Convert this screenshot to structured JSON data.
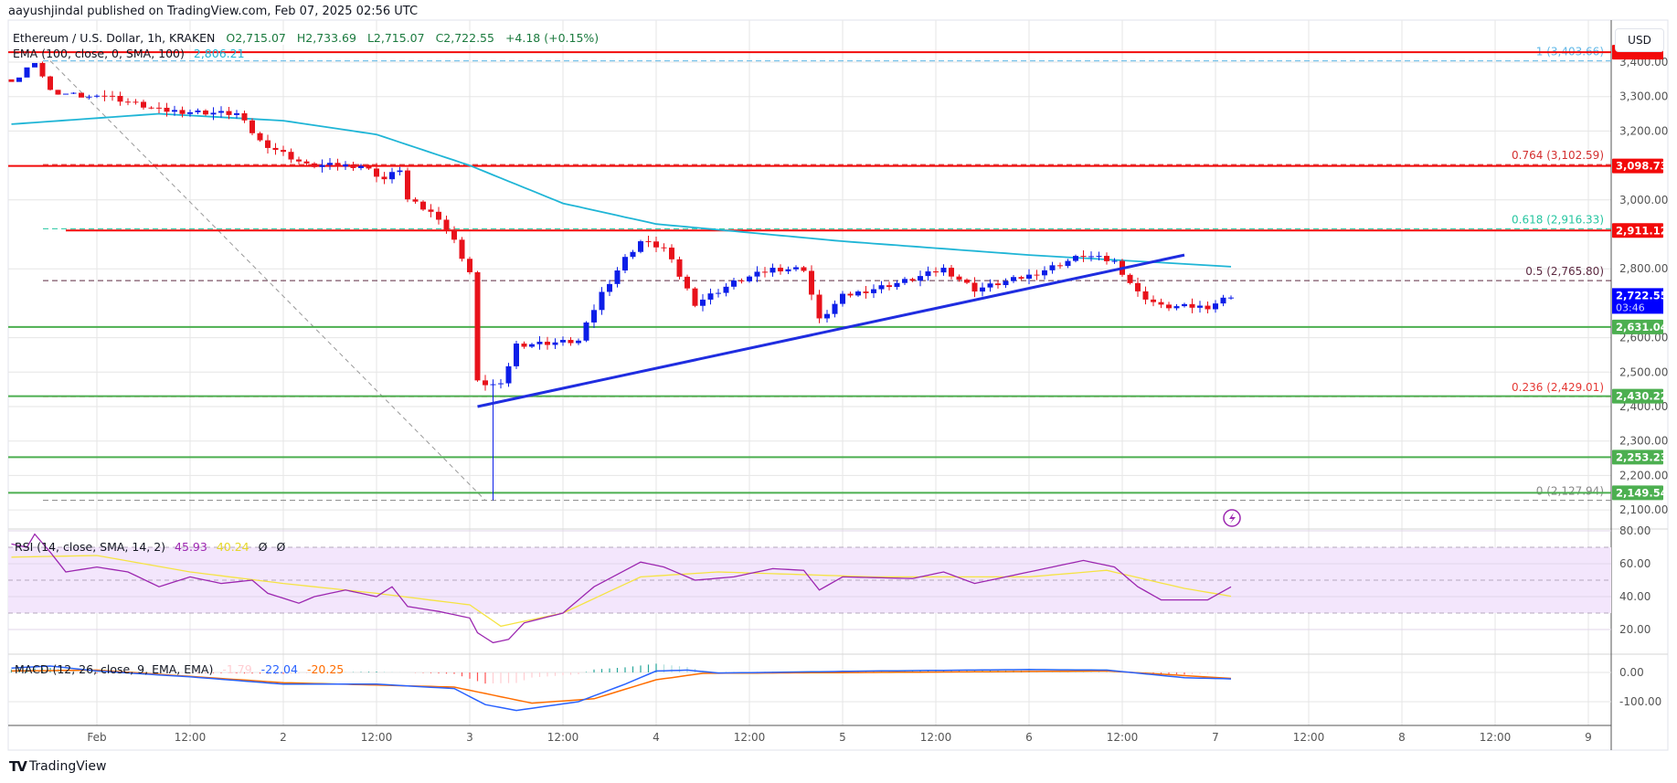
{
  "header": {
    "publisher": "aayushjindal published on TradingView.com, Feb 07, 2025 02:56 UTC",
    "symbol": "Ethereum / U.S. Dollar, 1h, KRAKEN",
    "open": "O2,715.07",
    "high": "H2,733.69",
    "low": "L2,715.07",
    "close": "C2,722.55",
    "change": "+4.18 (+0.15%)"
  },
  "ema_legend": {
    "label": "EMA (100, close, 0, SMA, 100)",
    "value": "2,806.21"
  },
  "rsi_legend": {
    "label": "RSI (14, close, SMA, 14, 2)",
    "rsi": "45.93",
    "sma": "40.24",
    "extra1": "Ø",
    "extra2": "Ø"
  },
  "macd_legend": {
    "label": "MACD (12, 26, close, 9, EMA, EMA)",
    "hist": "-1.79",
    "macd": "-22.04",
    "signal": "-20.25"
  },
  "currency": "USD",
  "brand": "TradingView",
  "colors": {
    "up": "#0c1ee8",
    "down": "#e8121b",
    "ema": "#1fb5d6",
    "trend": "#1f2de0",
    "red_level": "#f20a0a",
    "green_level": "#4caf50",
    "rsi": "#9c27b0",
    "rsi_sma": "#f5e342",
    "macd": "#2962ff",
    "signal": "#ff6d00",
    "price_label": "#0000ff"
  },
  "chart_data": {
    "type": "candlestick",
    "title": "Ethereum / U.S. Dollar, 1h, KRAKEN",
    "x_unit": "hours from Feb 1 00:00",
    "price_axis": {
      "ticks": [
        "3,400.00",
        "3,300.00",
        "3,200.00",
        "3,000.00",
        "2,800.00",
        "2,600.00",
        "2,500.00",
        "2,400.00",
        "2,300.00",
        "2,200.00",
        "2,100.00"
      ],
      "tick_values": [
        3400,
        3300,
        3200,
        3000,
        2800,
        2600,
        2500,
        2400,
        2300,
        2200,
        2100
      ]
    },
    "time_axis": [
      {
        "h": 0,
        "label": "Feb"
      },
      {
        "h": 12,
        "label": "12:00"
      },
      {
        "h": 24,
        "label": "2"
      },
      {
        "h": 36,
        "label": "12:00"
      },
      {
        "h": 48,
        "label": "3"
      },
      {
        "h": 60,
        "label": "12:00"
      },
      {
        "h": 72,
        "label": "4"
      },
      {
        "h": 84,
        "label": "12:00"
      },
      {
        "h": 96,
        "label": "5"
      },
      {
        "h": 108,
        "label": "12:00"
      },
      {
        "h": 120,
        "label": "6"
      },
      {
        "h": 132,
        "label": "12:00"
      },
      {
        "h": 144,
        "label": "7"
      },
      {
        "h": 156,
        "label": "12:00"
      },
      {
        "h": 168,
        "label": "8"
      },
      {
        "h": 180,
        "label": "12:00"
      },
      {
        "h": 192,
        "label": "9"
      }
    ],
    "close_waypoints": [
      [
        -11,
        3350
      ],
      [
        -8,
        3420
      ],
      [
        -6,
        3330
      ],
      [
        0,
        3310
      ],
      [
        8,
        3260
      ],
      [
        18,
        3250
      ],
      [
        21,
        3170
      ],
      [
        27,
        3100
      ],
      [
        34,
        3100
      ],
      [
        37,
        3060
      ],
      [
        39,
        3090
      ],
      [
        40,
        3000
      ],
      [
        44,
        2950
      ],
      [
        46,
        2880
      ],
      [
        48,
        2790
      ],
      [
        49,
        2470
      ],
      [
        52,
        2460
      ],
      [
        54,
        2580
      ],
      [
        62,
        2590
      ],
      [
        65,
        2730
      ],
      [
        68,
        2830
      ],
      [
        70,
        2880
      ],
      [
        73,
        2860
      ],
      [
        77,
        2700
      ],
      [
        82,
        2760
      ],
      [
        87,
        2800
      ],
      [
        91,
        2800
      ],
      [
        93,
        2650
      ],
      [
        96,
        2720
      ],
      [
        105,
        2770
      ],
      [
        109,
        2800
      ],
      [
        113,
        2740
      ],
      [
        120,
        2780
      ],
      [
        127,
        2840
      ],
      [
        131,
        2820
      ],
      [
        134,
        2730
      ],
      [
        137,
        2690
      ],
      [
        143,
        2690
      ],
      [
        146,
        2722.55
      ]
    ],
    "spike_low": {
      "h": 51,
      "price": 2127.94
    },
    "ema100_waypoints": [
      [
        -11,
        3220
      ],
      [
        8,
        3250
      ],
      [
        24,
        3230
      ],
      [
        36,
        3190
      ],
      [
        48,
        3100
      ],
      [
        60,
        2990
      ],
      [
        72,
        2930
      ],
      [
        96,
        2880
      ],
      [
        120,
        2840
      ],
      [
        146,
        2806.21
      ]
    ],
    "trendline": [
      [
        49,
        2400
      ],
      [
        140,
        2840
      ]
    ],
    "fib_diagonal": [
      [
        -6,
        3403.66
      ],
      [
        50,
        2127.94
      ]
    ],
    "horizontal_levels": [
      {
        "price": 3429,
        "color": "red",
        "label": ""
      },
      {
        "price": 3098.73,
        "color": "red",
        "label": "3,098.73"
      },
      {
        "price": 2911.12,
        "color": "red",
        "label": "2,911.12"
      },
      {
        "price": 2631.04,
        "color": "green",
        "label": "2,631.04"
      },
      {
        "price": 2430.22,
        "color": "green",
        "label": "2,430.22"
      },
      {
        "price": 2253.23,
        "color": "green",
        "label": "2,253.23"
      },
      {
        "price": 2149.54,
        "color": "green",
        "label": "2,149.54"
      }
    ],
    "fib_levels": [
      {
        "price": 3403.66,
        "label": "1 (3,403.66)",
        "color": "#5fb8e8"
      },
      {
        "price": 3102.59,
        "label": "0.764 (3,102.59)",
        "color": "#d32f2f"
      },
      {
        "price": 2916.33,
        "label": "0.618 (2,916.33)",
        "color": "#26c6a0"
      },
      {
        "price": 2765.8,
        "label": "0.5 (2,765.80)",
        "color": "#5d2a42"
      },
      {
        "price": 2429.01,
        "label": "0.236 (2,429.01)",
        "color": "#e53935"
      },
      {
        "price": 2127.94,
        "label": "0 (2,127.94)",
        "color": "#888888"
      }
    ],
    "current_price": {
      "price": 2722.55,
      "label": "2,722.55",
      "countdown": "03:46"
    },
    "rsi_axis": {
      "ticks": [
        "80.00",
        "60.00",
        "40.00",
        "20.00"
      ],
      "values": [
        80,
        60,
        40,
        20
      ],
      "band": [
        30,
        70
      ]
    },
    "rsi_waypoints": [
      [
        -11,
        72
      ],
      [
        -9,
        70
      ],
      [
        -8,
        78
      ],
      [
        -6,
        67
      ],
      [
        -4,
        55
      ],
      [
        0,
        58
      ],
      [
        4,
        55
      ],
      [
        8,
        46
      ],
      [
        12,
        52
      ],
      [
        16,
        48
      ],
      [
        20,
        50
      ],
      [
        22,
        42
      ],
      [
        26,
        36
      ],
      [
        28,
        40
      ],
      [
        32,
        44
      ],
      [
        36,
        40
      ],
      [
        38,
        46
      ],
      [
        40,
        34
      ],
      [
        44,
        31
      ],
      [
        48,
        27
      ],
      [
        49,
        18
      ],
      [
        51,
        12
      ],
      [
        53,
        14
      ],
      [
        55,
        24
      ],
      [
        60,
        30
      ],
      [
        64,
        46
      ],
      [
        68,
        56
      ],
      [
        70,
        61
      ],
      [
        73,
        58
      ],
      [
        77,
        50
      ],
      [
        82,
        52
      ],
      [
        87,
        57
      ],
      [
        91,
        56
      ],
      [
        93,
        44
      ],
      [
        96,
        52
      ],
      [
        105,
        51
      ],
      [
        109,
        55
      ],
      [
        113,
        48
      ],
      [
        120,
        55
      ],
      [
        127,
        62
      ],
      [
        131,
        58
      ],
      [
        134,
        46
      ],
      [
        137,
        38
      ],
      [
        143,
        38
      ],
      [
        146,
        45.93
      ]
    ],
    "rsi_sma_waypoints": [
      [
        -11,
        64
      ],
      [
        0,
        65
      ],
      [
        12,
        55
      ],
      [
        24,
        48
      ],
      [
        36,
        42
      ],
      [
        48,
        35
      ],
      [
        52,
        22
      ],
      [
        60,
        30
      ],
      [
        70,
        52
      ],
      [
        80,
        55
      ],
      [
        100,
        52
      ],
      [
        120,
        52
      ],
      [
        130,
        56
      ],
      [
        140,
        45
      ],
      [
        146,
        40.24
      ]
    ],
    "macd_axis": {
      "ticks": [
        "0.00",
        "-100.00"
      ],
      "values": [
        0,
        -100
      ]
    },
    "macd_waypoints": [
      [
        -11,
        15
      ],
      [
        -6,
        22
      ],
      [
        0,
        5
      ],
      [
        12,
        -15
      ],
      [
        24,
        -40
      ],
      [
        36,
        -40
      ],
      [
        46,
        -55
      ],
      [
        50,
        -110
      ],
      [
        54,
        -130
      ],
      [
        62,
        -100
      ],
      [
        68,
        -40
      ],
      [
        72,
        5
      ],
      [
        76,
        8
      ],
      [
        80,
        -2
      ],
      [
        100,
        5
      ],
      [
        120,
        10
      ],
      [
        130,
        8
      ],
      [
        140,
        -18
      ],
      [
        146,
        -22.04
      ]
    ],
    "signal_waypoints": [
      [
        -11,
        5
      ],
      [
        0,
        8
      ],
      [
        24,
        -35
      ],
      [
        46,
        -50
      ],
      [
        56,
        -105
      ],
      [
        64,
        -90
      ],
      [
        72,
        -25
      ],
      [
        78,
        -3
      ],
      [
        100,
        0
      ],
      [
        130,
        5
      ],
      [
        146,
        -20.25
      ]
    ]
  }
}
